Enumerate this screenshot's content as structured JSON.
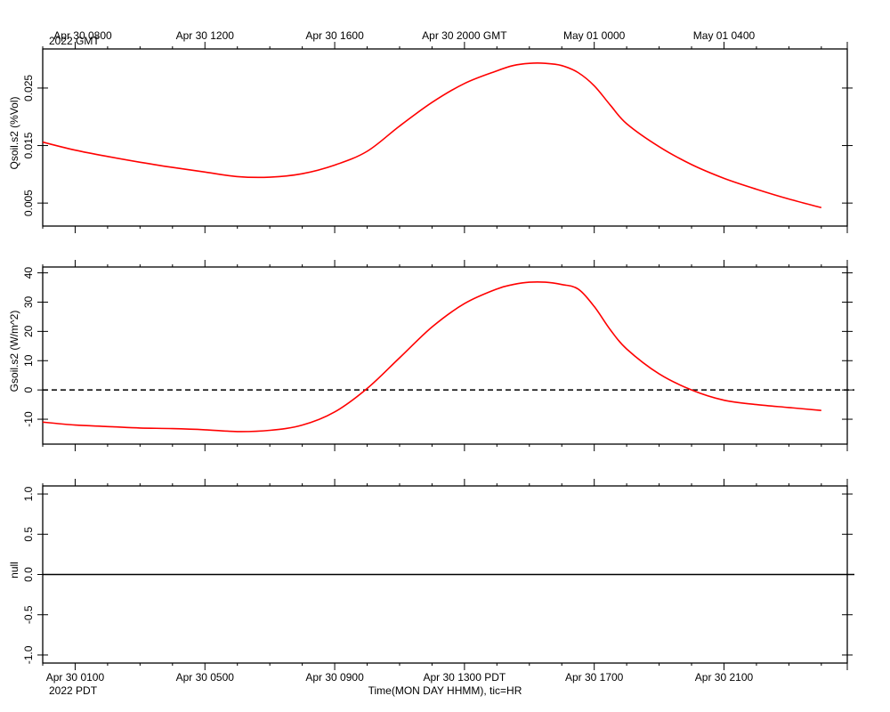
{
  "figure": {
    "top_axis": {
      "labels": [
        "Apr 30 0800",
        "Apr 30 1200",
        "Apr 30 1600",
        "Apr 30 2000 GMT",
        "May 01 0000",
        "May 01 0400"
      ],
      "first_subtitle": "2022 GMT"
    },
    "bottom_axis": {
      "labels": [
        "Apr 30 0100",
        "Apr 30 0500",
        "Apr 30 0900",
        "Apr 30 1300 PDT",
        "Apr 30 1700",
        "Apr 30 2100"
      ],
      "first_subtitle": "2022 PDT",
      "xlabel": "Time(MON DAY HHMM), tic=HR"
    },
    "line_color": "#ff0000",
    "zero_line_color": "#000000"
  },
  "chart_data": [
    {
      "type": "line",
      "ylabel": "Qsoil.s2 (%Vol)",
      "ylim": [
        0.001,
        0.0318
      ],
      "yticks": [
        0.005,
        0.015,
        0.025
      ],
      "ytick_labels": [
        "0.005",
        "0.015",
        "0.025"
      ],
      "x_hours_since_start": [
        0,
        1,
        2,
        3,
        4,
        5,
        6,
        7,
        8,
        9,
        10,
        11,
        12,
        13,
        14,
        14.5,
        15,
        15.5,
        16,
        16.5,
        17,
        17.5,
        18,
        19,
        20,
        21,
        22,
        23,
        24
      ],
      "series": [
        {
          "values": [
            0.0156,
            0.0142,
            0.0131,
            0.0121,
            0.0112,
            0.0104,
            0.0096,
            0.0095,
            0.0101,
            0.0116,
            0.014,
            0.0184,
            0.0225,
            0.0258,
            0.028,
            0.0289,
            0.0293,
            0.0293,
            0.0289,
            0.0277,
            0.0254,
            0.022,
            0.0188,
            0.0148,
            0.0117,
            0.0093,
            0.0074,
            0.0057,
            0.0042
          ]
        }
      ],
      "zero_line": false
    },
    {
      "type": "line",
      "ylabel": "Gsoil.s2 (W/m^2)",
      "ylim": [
        -18.5,
        42
      ],
      "yticks": [
        -10,
        0,
        10,
        20,
        30,
        40
      ],
      "ytick_labels": [
        "-10",
        "0",
        "10",
        "20",
        "30",
        "40"
      ],
      "x_hours_since_start": [
        0,
        1,
        2,
        3,
        4,
        5,
        6,
        7,
        8,
        9,
        10,
        11,
        12,
        13,
        14,
        14.5,
        15,
        15.5,
        16,
        16.5,
        17,
        17.5,
        18,
        19,
        20,
        21,
        22,
        23,
        24
      ],
      "series": [
        {
          "values": [
            -11,
            -12,
            -12.5,
            -13,
            -13.2,
            -13.6,
            -14.2,
            -13.8,
            -12,
            -7.5,
            0.5,
            11,
            21.5,
            29.5,
            34.5,
            36,
            36.8,
            36.8,
            36,
            34.5,
            28.5,
            20.5,
            14,
            5.5,
            0,
            -3.5,
            -5,
            -6,
            -7
          ]
        }
      ],
      "zero_line": true
    },
    {
      "type": "line",
      "ylabel": "null",
      "ylim": [
        -1.1,
        1.1
      ],
      "yticks": [
        -1.0,
        -0.5,
        0.0,
        0.5,
        1.0
      ],
      "ytick_labels": [
        "-1.0",
        "-0.5",
        "0.0",
        "0.5",
        "1.0"
      ],
      "series": [],
      "zero_line": true
    }
  ]
}
